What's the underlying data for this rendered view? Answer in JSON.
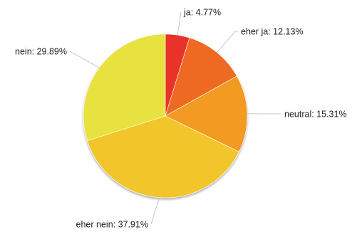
{
  "chart_data": {
    "type": "pie",
    "slices": [
      {
        "name": "ja",
        "value": 4.77,
        "label": "ja: 4.77%",
        "color": "#e8322a"
      },
      {
        "name": "eher ja",
        "value": 12.13,
        "label": "eher ja: 12.13%",
        "color": "#ee6a24"
      },
      {
        "name": "neutral",
        "value": 15.31,
        "label": "neutral: 15.31%",
        "color": "#f29a22"
      },
      {
        "name": "eher nein",
        "value": 37.91,
        "label": "eher nein: 37.91%",
        "color": "#f2c52c"
      },
      {
        "name": "nein",
        "value": 29.89,
        "label": "nein: 29.89%",
        "color": "#e8e240"
      }
    ],
    "legend": "none",
    "start": "top",
    "direction": "clockwise"
  }
}
